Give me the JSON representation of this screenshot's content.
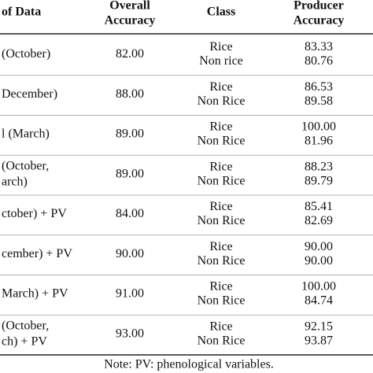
{
  "header": [
    [
      "of Data"
    ],
    [
      "Overall",
      "Accuracy"
    ],
    [
      "Class"
    ],
    [
      "Producer",
      "Accuracy"
    ]
  ],
  "rows": [
    {
      "data": [
        "(October)"
      ],
      "overall": "82.00",
      "classes": [
        "Rice",
        "Non rice"
      ],
      "producer": [
        "83.33",
        "80.76"
      ]
    },
    {
      "data": [
        "December)"
      ],
      "overall": "88.00",
      "classes": [
        "Rice",
        "Non Rice"
      ],
      "producer": [
        "86.53",
        "89.58"
      ]
    },
    {
      "data": [
        "l (March)"
      ],
      "overall": "89.00",
      "classes": [
        "Rice",
        "Non Rice"
      ],
      "producer": [
        "100.00",
        "81.96"
      ]
    },
    {
      "data": [
        "(October,",
        "arch)"
      ],
      "overall": "89.00",
      "classes": [
        "Rice",
        "Non Rice"
      ],
      "producer": [
        "88.23",
        "89.79"
      ]
    },
    {
      "data": [
        "ctober) + PV"
      ],
      "overall": "84.00",
      "classes": [
        "Rice",
        "Non Rice"
      ],
      "producer": [
        "85.41",
        "82.69"
      ]
    },
    {
      "data": [
        "cember) + PV"
      ],
      "overall": "90.00",
      "classes": [
        "Rice",
        "Non Rice"
      ],
      "producer": [
        "90.00",
        "90.00"
      ]
    },
    {
      "data": [
        "March) + PV"
      ],
      "overall": "91.00",
      "classes": [
        "Rice",
        "Non Rice"
      ],
      "producer": [
        "100.00",
        "84.74"
      ]
    },
    {
      "data": [
        "(October,",
        "ch) + PV"
      ],
      "overall": "93.00",
      "classes": [
        "Rice",
        "Non Rice"
      ],
      "producer": [
        "92.15",
        "93.87"
      ]
    }
  ],
  "note": "Note: PV: phenological variables."
}
